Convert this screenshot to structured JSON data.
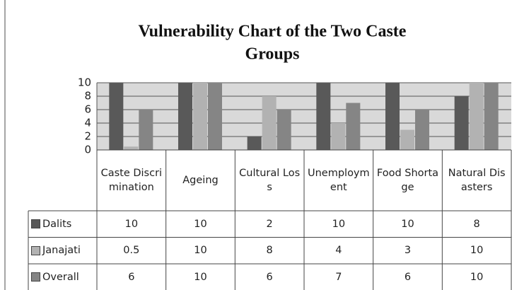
{
  "chart_data": {
    "type": "bar",
    "title": "Vulnerability Chart of the Two Caste Groups",
    "categories": [
      "Caste Discrimination",
      "Ageing",
      "Cultural Loss",
      "Unemployment",
      "Food Shortage",
      "Natural Disasters"
    ],
    "series": [
      {
        "name": "Dalits",
        "color": "#595959",
        "values": [
          10,
          10,
          2,
          10,
          10,
          8
        ]
      },
      {
        "name": "Janajati",
        "color": "#b2b2b2",
        "values": [
          0.5,
          10,
          8,
          4,
          3,
          10
        ]
      },
      {
        "name": "Overall",
        "color": "#858585",
        "values": [
          6,
          10,
          6,
          7,
          6,
          10
        ]
      }
    ],
    "ylim": [
      0,
      10
    ],
    "yticks": [
      0,
      2,
      4,
      6,
      8,
      10
    ],
    "grid": true,
    "data_table": true
  }
}
